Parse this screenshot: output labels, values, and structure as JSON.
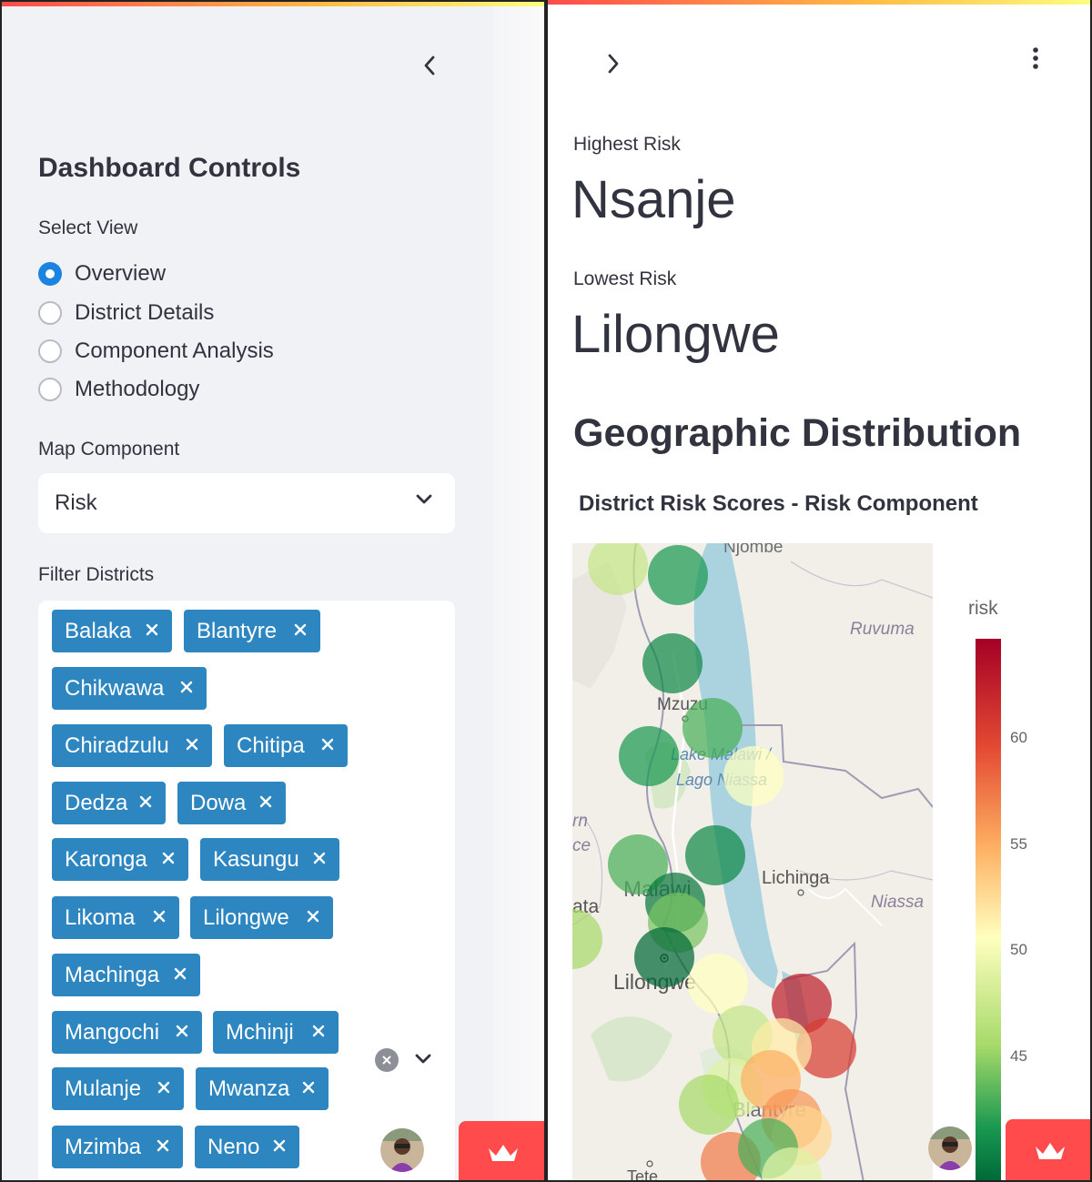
{
  "sidebar": {
    "title": "Dashboard Controls",
    "view_label": "Select View",
    "view_options": [
      "Overview",
      "District Details",
      "Component Analysis",
      "Methodology"
    ],
    "view_selected": "Overview",
    "map_component_label": "Map Component",
    "map_component_value": "Risk",
    "filter_label": "Filter Districts",
    "districts": [
      "Balaka",
      "Blantyre",
      "Chikwawa",
      "Chiradzulu",
      "Chitipa",
      "Dedza",
      "Dowa",
      "Karonga",
      "Kasungu",
      "Likoma",
      "Lilongwe",
      "Machinga",
      "Mangochi",
      "Mchinji",
      "Mulanje",
      "Mwanza",
      "Mzimba",
      "Neno"
    ]
  },
  "main": {
    "highest_label": "Highest Risk",
    "highest_value": "Nsanje",
    "lowest_label": "Lowest Risk",
    "lowest_value": "Lilongwe",
    "section_title": "Geographic Distribution",
    "chart_title": "District Risk Scores - Risk Component",
    "colorbar_title": "risk",
    "colorbar_ticks": [
      "60",
      "55",
      "50",
      "45"
    ],
    "map_labels": {
      "njombe": "Njombe",
      "ruvuma": "Ruvuma",
      "mzuzu": "Mzuzu",
      "lake_line1": "Lake Malawi /",
      "lake_line2": "Lago Niassa",
      "lichinga": "Lichinga",
      "niassa": "Niassa",
      "malawi": "Malawi",
      "lilongwe": "Lilongwe",
      "blantyre": "Blantyre",
      "edge_rn": "rn",
      "edge_ce": "ce",
      "edge_ata": "ata",
      "tete": "Tete"
    }
  },
  "colors": {
    "accent": "#1c83e1",
    "chip": "#2e86c1",
    "deploy": "#ff4b4b",
    "water": "#aad3df",
    "land": "#f2efe9"
  },
  "chart_data": {
    "type": "scatter",
    "title": "District Risk Scores - Risk Component",
    "color_axis": {
      "title": "risk",
      "ticks": [
        45,
        50,
        55,
        60
      ],
      "range": [
        42,
        64
      ],
      "colorscale": "RdYlGn reversed"
    },
    "points": [
      {
        "risk": 49
      },
      {
        "risk": 45
      },
      {
        "risk": 44
      },
      {
        "risk": 46
      },
      {
        "risk": 45
      },
      {
        "risk": 51
      },
      {
        "risk": 46
      },
      {
        "risk": 44
      },
      {
        "risk": 43
      },
      {
        "risk": 47
      },
      {
        "risk": 42
      },
      {
        "risk": 48
      },
      {
        "risk": 51
      },
      {
        "risk": 62
      },
      {
        "risk": 60
      },
      {
        "risk": 49
      },
      {
        "risk": 52
      },
      {
        "risk": 50
      },
      {
        "risk": 48
      },
      {
        "risk": 55
      },
      {
        "risk": 56
      },
      {
        "risk": 53
      },
      {
        "risk": 57
      },
      {
        "risk": 46
      },
      {
        "risk": 50
      }
    ]
  }
}
